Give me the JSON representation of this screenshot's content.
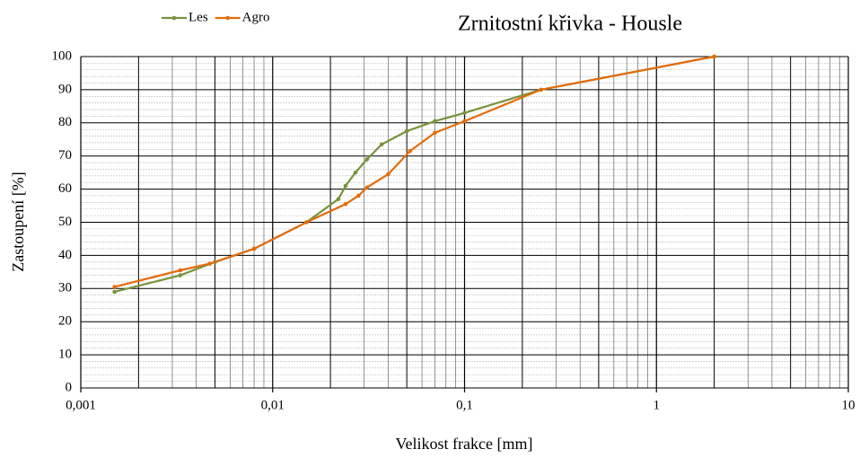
{
  "chart_data": {
    "type": "line",
    "title": "Zrnitostní křivka - Housle",
    "x_label": "Velikost frakce [mm]",
    "y_label": "Zastoupení [%]",
    "log_x": true,
    "grid": true,
    "minor_grid": true,
    "legend": "top-left",
    "xlim": [
      0.001,
      10
    ],
    "xticks": [
      {
        "value": 0.001,
        "label": "0,001"
      },
      {
        "value": 0.01,
        "label": "0,01"
      },
      {
        "value": 0.1,
        "label": "0,1"
      },
      1,
      10
    ],
    "ylim": [
      0,
      100
    ],
    "yticks": [
      0,
      10,
      20,
      30,
      40,
      50,
      60,
      70,
      80,
      90,
      100
    ],
    "series": [
      {
        "name": "Les",
        "color": "#77933c",
        "x": [
          0.0015,
          0.0033,
          0.005,
          0.008,
          0.015,
          0.022,
          0.024,
          0.027,
          0.031,
          0.037,
          0.05,
          0.07,
          0.1,
          0.25,
          2
        ],
        "values": [
          29,
          34,
          38,
          42,
          50,
          57,
          61,
          65,
          69,
          73.5,
          77.5,
          80.5,
          83,
          90,
          100
        ]
      },
      {
        "name": "Agro",
        "color": "#e46c0a",
        "x": [
          0.0015,
          0.0033,
          0.0047,
          0.008,
          0.015,
          0.024,
          0.028,
          0.031,
          0.04,
          0.052,
          0.07,
          0.1,
          0.25,
          2
        ],
        "values": [
          30.5,
          35.5,
          37.5,
          42,
          50,
          55.5,
          58,
          60.5,
          64.5,
          71.5,
          77,
          80.5,
          90,
          100
        ]
      }
    ]
  }
}
